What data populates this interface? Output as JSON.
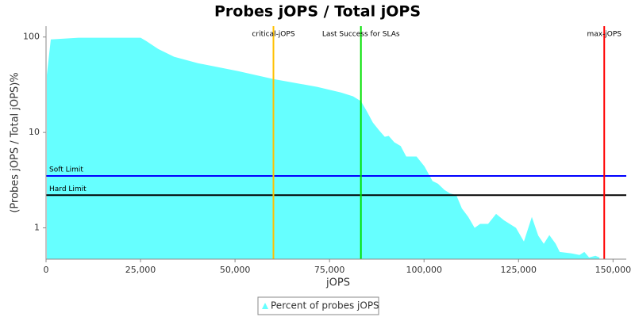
{
  "chart_data": {
    "type": "area",
    "title": "Probes jOPS / Total jOPS",
    "x_label": "jOPS",
    "y_label": "(Probes jOPS / Total jOPS)%",
    "x": [
      210,
      1260,
      8620,
      25030,
      26500,
      29660,
      33870,
      40180,
      50700,
      60160,
      71730,
      78040,
      81200,
      83300,
      84770,
      86460,
      88140,
      89610,
      90660,
      92130,
      93820,
      95290,
      98020,
      100120,
      102230,
      103700,
      105390,
      106860,
      108540,
      110010,
      111700,
      113380,
      114850,
      116950,
      119060,
      121160,
      124320,
      126420,
      128520,
      130210,
      131680,
      133150,
      134830,
      135890,
      139040,
      141140,
      142410,
      143670,
      145350,
      146400
    ],
    "series": [
      {
        "name": "Percent of probes jOPS",
        "color": "#66ffff",
        "values": [
          40.0,
          94.4,
          98.2,
          98.2,
          90.9,
          75.1,
          62.1,
          53.2,
          44.0,
          36.3,
          30.0,
          26.2,
          23.9,
          21.3,
          16.9,
          12.7,
          10.5,
          9.0,
          9.2,
          7.9,
          7.2,
          5.6,
          5.6,
          4.4,
          3.1,
          2.9,
          2.5,
          2.3,
          2.2,
          1.6,
          1.3,
          1.0,
          1.1,
          1.1,
          1.4,
          1.2,
          1.0,
          0.72,
          1.3,
          0.83,
          0.68,
          0.84,
          0.68,
          0.56,
          0.54,
          0.52,
          0.56,
          0.49,
          0.51,
          0.49
        ]
      }
    ],
    "xlim": [
      0,
      153500
    ],
    "xticks": [
      0,
      {
        "value": 25000,
        "label": "25,000"
      },
      {
        "value": 50000,
        "label": "50,000"
      },
      {
        "value": 75000,
        "label": "75,000"
      },
      {
        "value": 100000,
        "label": "100,000"
      },
      {
        "value": 125000,
        "label": "125,000"
      },
      {
        "value": 150000,
        "label": "150,000"
      }
    ],
    "ylim": [
      0.47,
      130
    ],
    "yticks": [
      1,
      10,
      100
    ],
    "ylog": true,
    "grid": false,
    "x_markers": [
      {
        "label": "critical-jOPS",
        "value": 60160,
        "color": "#ffc000"
      },
      {
        "label": "Last Success for SLAs",
        "value": 83300,
        "color": "#00e000"
      },
      {
        "label": "max-jOPS",
        "value": 147670,
        "color": "#ff0000"
      }
    ],
    "y_markers": [
      {
        "label": "Soft Limit",
        "value": 3.5,
        "color": "#0000ff"
      },
      {
        "label": "Hard Limit",
        "value": 2.2,
        "color": "#000000"
      }
    ],
    "legend": "bottom"
  }
}
